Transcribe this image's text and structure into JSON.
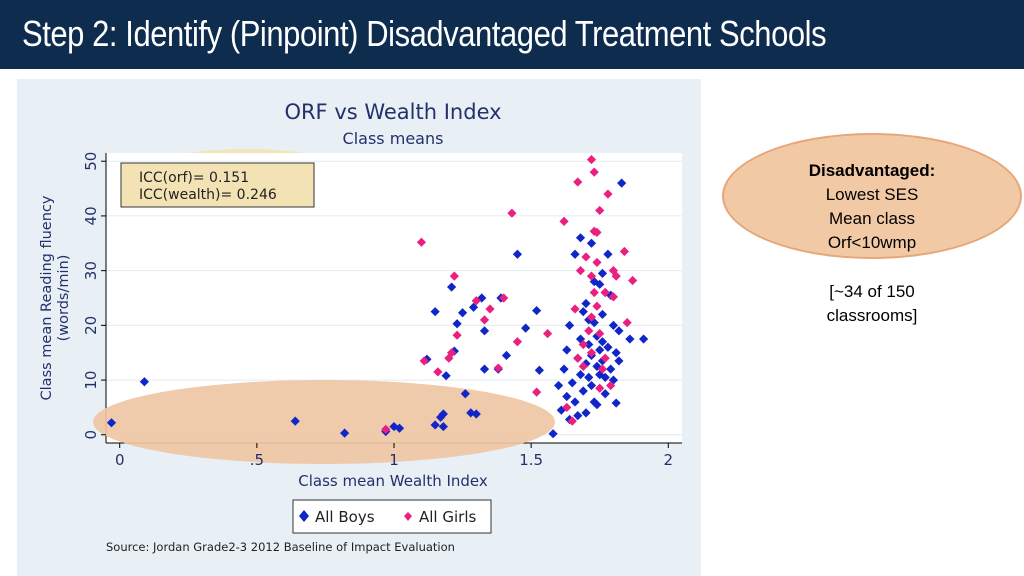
{
  "slide": {
    "title": "Step 2: Identify (Pinpoint) Disadvantaged Treatment Schools"
  },
  "callout": {
    "heading": "Disadvantaged:",
    "lines": [
      "Lowest SES",
      "Mean class",
      "Orf<10wmp"
    ]
  },
  "note": {
    "lines": [
      "[~34 of 150",
      "classrooms]"
    ]
  },
  "colors": {
    "title_bar": "#0d2c4e",
    "boys": "#1026c8",
    "girls": "#ea1f7f",
    "plot_bg": "#ffffff",
    "panel_bg": "#e8f0f6",
    "icc_highlight": "#f3e3b4",
    "low_highlight": "#eec7a4"
  },
  "chart_data": {
    "type": "scatter",
    "title": "ORF vs Wealth Index",
    "subtitle": "Class means",
    "xlabel": "Class mean Wealth Index",
    "ylabel_lines": [
      "Class mean Reading fluency",
      "(words/min)"
    ],
    "xlim": [
      -0.05,
      2.05
    ],
    "ylim": [
      -1.5,
      51.5
    ],
    "x_ticks": [
      0,
      0.5,
      1,
      1.5,
      2
    ],
    "x_tick_labels": [
      "0",
      ".5",
      "1",
      "1.5",
      "2"
    ],
    "y_ticks": [
      0,
      10,
      20,
      30,
      40,
      50
    ],
    "y_tick_labels": [
      "0",
      "10",
      "20",
      "30",
      "40",
      "50"
    ],
    "annotation_lines": [
      "ICC(orf)= 0.151",
      "ICC(wealth)= 0.246"
    ],
    "legend": {
      "position": "bottom",
      "labels": [
        "All Boys",
        "All Girls"
      ]
    },
    "source": "Source: Jordan Grade2-3 2012 Baseline of Impact Evaluation",
    "series": [
      {
        "name": "All Boys",
        "marker": "diamond",
        "points": [
          [
            -0.03,
            2.2
          ],
          [
            0.09,
            9.7
          ],
          [
            0.64,
            2.5
          ],
          [
            0.82,
            0.3
          ],
          [
            0.97,
            0.6
          ],
          [
            1.0,
            1.5
          ],
          [
            1.02,
            1.2
          ],
          [
            1.12,
            13.8
          ],
          [
            1.15,
            22.5
          ],
          [
            1.15,
            1.8
          ],
          [
            1.17,
            3.2
          ],
          [
            1.18,
            3.8
          ],
          [
            1.18,
            1.5
          ],
          [
            1.19,
            10.8
          ],
          [
            1.21,
            27.0
          ],
          [
            1.22,
            15.3
          ],
          [
            1.23,
            20.3
          ],
          [
            1.25,
            22.3
          ],
          [
            1.26,
            7.5
          ],
          [
            1.28,
            4.0
          ],
          [
            1.29,
            23.3
          ],
          [
            1.3,
            3.8
          ],
          [
            1.32,
            25.0
          ],
          [
            1.33,
            12.0
          ],
          [
            1.33,
            19.0
          ],
          [
            1.38,
            12.0
          ],
          [
            1.39,
            25.0
          ],
          [
            1.41,
            14.5
          ],
          [
            1.45,
            33.0
          ],
          [
            1.48,
            19.5
          ],
          [
            1.52,
            22.7
          ],
          [
            1.53,
            11.8
          ],
          [
            1.58,
            0.2
          ],
          [
            1.6,
            9.0
          ],
          [
            1.61,
            4.5
          ],
          [
            1.62,
            12.0
          ],
          [
            1.63,
            15.5
          ],
          [
            1.63,
            7.0
          ],
          [
            1.64,
            2.8
          ],
          [
            1.64,
            20.0
          ],
          [
            1.65,
            9.5
          ],
          [
            1.66,
            33.0
          ],
          [
            1.66,
            6.0
          ],
          [
            1.67,
            14.0
          ],
          [
            1.67,
            3.5
          ],
          [
            1.68,
            36.0
          ],
          [
            1.68,
            17.5
          ],
          [
            1.68,
            11.0
          ],
          [
            1.69,
            22.5
          ],
          [
            1.69,
            8.0
          ],
          [
            1.7,
            24.0
          ],
          [
            1.7,
            13.0
          ],
          [
            1.7,
            4.0
          ],
          [
            1.71,
            21.0
          ],
          [
            1.71,
            16.5
          ],
          [
            1.71,
            10.5
          ],
          [
            1.72,
            35.0
          ],
          [
            1.72,
            14.5
          ],
          [
            1.72,
            9.0
          ],
          [
            1.73,
            28.0
          ],
          [
            1.73,
            20.5
          ],
          [
            1.73,
            6.0
          ],
          [
            1.74,
            18.0
          ],
          [
            1.74,
            12.5
          ],
          [
            1.74,
            5.5
          ],
          [
            1.75,
            27.5
          ],
          [
            1.75,
            15.5
          ],
          [
            1.75,
            11.0
          ],
          [
            1.76,
            29.5
          ],
          [
            1.76,
            22.0
          ],
          [
            1.76,
            17.0
          ],
          [
            1.76,
            13.5
          ],
          [
            1.77,
            26.0
          ],
          [
            1.77,
            10.5
          ],
          [
            1.77,
            7.5
          ],
          [
            1.78,
            33.0
          ],
          [
            1.78,
            16.0
          ],
          [
            1.79,
            25.5
          ],
          [
            1.79,
            12.0
          ],
          [
            1.8,
            20.0
          ],
          [
            1.8,
            10.0
          ],
          [
            1.81,
            15.0
          ],
          [
            1.81,
            5.8
          ],
          [
            1.82,
            19.0
          ],
          [
            1.82,
            13.5
          ],
          [
            1.83,
            46.0
          ],
          [
            1.86,
            17.5
          ],
          [
            1.91,
            17.5
          ]
        ]
      },
      {
        "name": "All Girls",
        "marker": "diamond",
        "points": [
          [
            0.97,
            1.0
          ],
          [
            1.1,
            35.2
          ],
          [
            1.11,
            13.5
          ],
          [
            1.16,
            11.5
          ],
          [
            1.2,
            14.0
          ],
          [
            1.21,
            15.0
          ],
          [
            1.22,
            29.0
          ],
          [
            1.23,
            18.2
          ],
          [
            1.3,
            24.5
          ],
          [
            1.33,
            21.0
          ],
          [
            1.35,
            23.0
          ],
          [
            1.38,
            12.2
          ],
          [
            1.4,
            25.0
          ],
          [
            1.43,
            40.5
          ],
          [
            1.45,
            17.0
          ],
          [
            1.52,
            7.8
          ],
          [
            1.56,
            18.5
          ],
          [
            1.62,
            39.0
          ],
          [
            1.63,
            5.0
          ],
          [
            1.65,
            2.5
          ],
          [
            1.66,
            23.0
          ],
          [
            1.67,
            14.0
          ],
          [
            1.67,
            46.2
          ],
          [
            1.68,
            30.0
          ],
          [
            1.69,
            12.5
          ],
          [
            1.7,
            32.5
          ],
          [
            1.71,
            19.0
          ],
          [
            1.72,
            50.3
          ],
          [
            1.72,
            29.0
          ],
          [
            1.72,
            21.5
          ],
          [
            1.72,
            15.0
          ],
          [
            1.73,
            26.0
          ],
          [
            1.73,
            48.0
          ],
          [
            1.73,
            37.2
          ],
          [
            1.74,
            37.0
          ],
          [
            1.74,
            31.5
          ],
          [
            1.74,
            23.5
          ],
          [
            1.75,
            18.5
          ],
          [
            1.75,
            8.5
          ],
          [
            1.76,
            12.0
          ],
          [
            1.77,
            26.0
          ],
          [
            1.77,
            14.0
          ],
          [
            1.78,
            44.0
          ],
          [
            1.79,
            9.0
          ],
          [
            1.8,
            30.0
          ],
          [
            1.8,
            25.2
          ],
          [
            1.81,
            29.0
          ],
          [
            1.84,
            33.5
          ],
          [
            1.85,
            20.5
          ],
          [
            1.87,
            28.2
          ],
          [
            1.75,
            41.0
          ],
          [
            1.69,
            16.5
          ]
        ]
      }
    ]
  }
}
